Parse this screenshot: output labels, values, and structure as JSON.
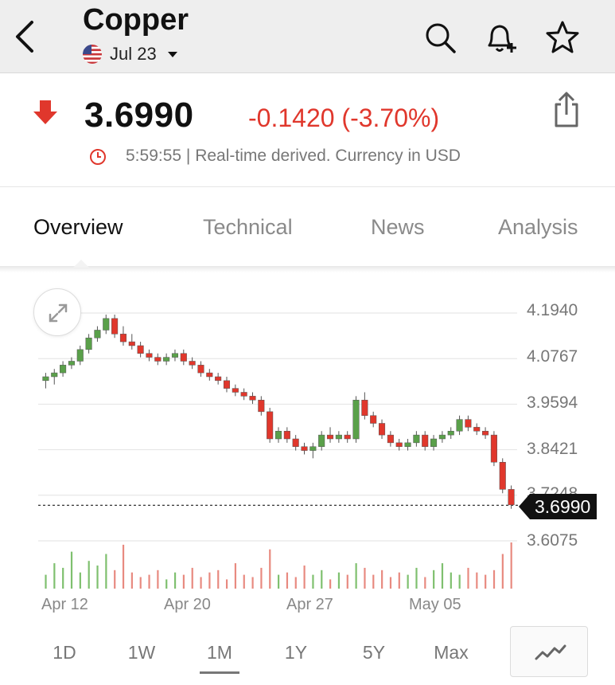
{
  "header": {
    "title": "Copper",
    "contract": "Jul 23"
  },
  "quote": {
    "price": "3.6990",
    "change": "-0.1420 (-3.70%)",
    "meta": "5:59:55 | Real-time derived. Currency in USD",
    "colors": {
      "down": "#e0372c",
      "up": "#5aa04a"
    }
  },
  "tabs": [
    {
      "label": "Overview"
    },
    {
      "label": "Technical"
    },
    {
      "label": "News"
    },
    {
      "label": "Analysis"
    }
  ],
  "chart_data": {
    "type": "candlestick",
    "y_ticks": [
      "4.1940",
      "4.0767",
      "3.9594",
      "3.8421",
      "3.7248",
      "3.6075"
    ],
    "x_ticks": [
      "Apr 12",
      "Apr 20",
      "Apr 27",
      "May 05"
    ],
    "ylim": [
      3.6075,
      4.194
    ],
    "last_value": "3.6990",
    "last_line": "dashed",
    "grid": true,
    "candles": [
      [
        4.02,
        4.04,
        4.0,
        4.03
      ],
      [
        4.03,
        4.05,
        4.01,
        4.04
      ],
      [
        4.04,
        4.07,
        4.03,
        4.06
      ],
      [
        4.06,
        4.08,
        4.05,
        4.07
      ],
      [
        4.07,
        4.11,
        4.06,
        4.1
      ],
      [
        4.1,
        4.14,
        4.09,
        4.13
      ],
      [
        4.13,
        4.16,
        4.12,
        4.15
      ],
      [
        4.15,
        4.19,
        4.14,
        4.18
      ],
      [
        4.18,
        4.19,
        4.13,
        4.14
      ],
      [
        4.14,
        4.16,
        4.11,
        4.12
      ],
      [
        4.12,
        4.14,
        4.1,
        4.11
      ],
      [
        4.11,
        4.12,
        4.08,
        4.09
      ],
      [
        4.09,
        4.1,
        4.07,
        4.08
      ],
      [
        4.08,
        4.09,
        4.06,
        4.07
      ],
      [
        4.07,
        4.09,
        4.06,
        4.08
      ],
      [
        4.08,
        4.1,
        4.07,
        4.09
      ],
      [
        4.09,
        4.1,
        4.06,
        4.07
      ],
      [
        4.07,
        4.08,
        4.05,
        4.06
      ],
      [
        4.06,
        4.07,
        4.03,
        4.04
      ],
      [
        4.04,
        4.05,
        4.02,
        4.03
      ],
      [
        4.03,
        4.04,
        4.01,
        4.02
      ],
      [
        4.02,
        4.03,
        3.99,
        4.0
      ],
      [
        4.0,
        4.01,
        3.98,
        3.99
      ],
      [
        3.99,
        4.0,
        3.97,
        3.98
      ],
      [
        3.98,
        3.99,
        3.96,
        3.97
      ],
      [
        3.97,
        3.98,
        3.93,
        3.94
      ],
      [
        3.94,
        3.95,
        3.86,
        3.87
      ],
      [
        3.87,
        3.9,
        3.86,
        3.89
      ],
      [
        3.89,
        3.9,
        3.86,
        3.87
      ],
      [
        3.87,
        3.88,
        3.84,
        3.85
      ],
      [
        3.85,
        3.86,
        3.83,
        3.84
      ],
      [
        3.84,
        3.86,
        3.82,
        3.85
      ],
      [
        3.85,
        3.89,
        3.84,
        3.88
      ],
      [
        3.88,
        3.9,
        3.86,
        3.87
      ],
      [
        3.87,
        3.89,
        3.86,
        3.88
      ],
      [
        3.88,
        3.89,
        3.86,
        3.87
      ],
      [
        3.87,
        3.98,
        3.86,
        3.97
      ],
      [
        3.97,
        3.99,
        3.92,
        3.93
      ],
      [
        3.93,
        3.94,
        3.9,
        3.91
      ],
      [
        3.91,
        3.92,
        3.87,
        3.88
      ],
      [
        3.88,
        3.89,
        3.85,
        3.86
      ],
      [
        3.86,
        3.87,
        3.84,
        3.85
      ],
      [
        3.85,
        3.87,
        3.84,
        3.86
      ],
      [
        3.86,
        3.89,
        3.85,
        3.88
      ],
      [
        3.88,
        3.89,
        3.84,
        3.85
      ],
      [
        3.85,
        3.88,
        3.84,
        3.87
      ],
      [
        3.87,
        3.89,
        3.86,
        3.88
      ],
      [
        3.88,
        3.9,
        3.87,
        3.89
      ],
      [
        3.89,
        3.93,
        3.88,
        3.92
      ],
      [
        3.92,
        3.93,
        3.89,
        3.9
      ],
      [
        3.9,
        3.91,
        3.88,
        3.89
      ],
      [
        3.89,
        3.9,
        3.87,
        3.88
      ],
      [
        3.88,
        3.89,
        3.8,
        3.81
      ],
      [
        3.81,
        3.82,
        3.73,
        3.74
      ],
      [
        3.74,
        3.75,
        3.69,
        3.7
      ]
    ],
    "volume": [
      0.3,
      0.55,
      0.45,
      0.8,
      0.35,
      0.6,
      0.5,
      0.75,
      0.4,
      0.95,
      0.35,
      0.25,
      0.3,
      0.4,
      0.2,
      0.35,
      0.3,
      0.45,
      0.25,
      0.35,
      0.4,
      0.2,
      0.55,
      0.3,
      0.25,
      0.45,
      0.85,
      0.3,
      0.35,
      0.25,
      0.5,
      0.3,
      0.4,
      0.2,
      0.35,
      0.3,
      0.55,
      0.45,
      0.3,
      0.4,
      0.25,
      0.35,
      0.3,
      0.45,
      0.25,
      0.4,
      0.55,
      0.35,
      0.3,
      0.45,
      0.35,
      0.3,
      0.4,
      0.75,
      1.0
    ]
  },
  "ranges": [
    "1D",
    "1W",
    "1M",
    "1Y",
    "5Y",
    "Max"
  ],
  "selected_range": "1M"
}
